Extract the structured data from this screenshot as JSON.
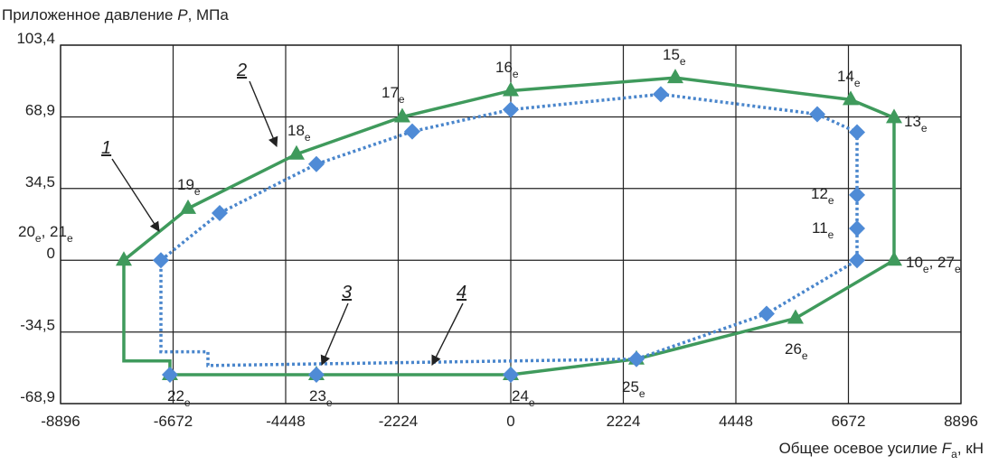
{
  "chart_data": {
    "type": "line",
    "y_label": [
      "Приложенное давление ",
      "P",
      ", МПа"
    ],
    "x_label": [
      "Общее осевое усилие ",
      "F",
      "a",
      ", кН"
    ],
    "xlim": [
      -8896,
      8896
    ],
    "ylim": [
      -68.9,
      103.4
    ],
    "xticks": [
      -8896,
      -6672,
      -4448,
      -2224,
      0,
      2224,
      4448,
      6672,
      8896
    ],
    "yticks": [
      {
        "value": -68.9,
        "label": "-68,9"
      },
      {
        "value": -34.5,
        "label": "-34,5"
      },
      0,
      {
        "value": 34.5,
        "label": "34,5"
      },
      {
        "value": 68.9,
        "label": "68,9"
      },
      {
        "value": 103.4,
        "label": "103,4"
      }
    ],
    "grid": true,
    "series": [
      {
        "color": "#3f9a5c",
        "line": "solid",
        "marker": "triangle",
        "x": [
          -7646,
          -6377,
          -4234,
          -2144,
          0,
          3251,
          6717,
          7574,
          7574,
          5627,
          2483,
          0,
          -3841,
          -6735
        ],
        "values": [
          0,
          24.9,
          51,
          68.9,
          81.5,
          87.7,
          77.2,
          68.5,
          0,
          -27.9,
          -47.5,
          -55,
          -55,
          -55
        ]
      },
      {
        "color": "#3f9a5c",
        "line": "solid",
        "marker": null,
        "x": [
          -6735,
          -6735,
          -7646,
          -7646
        ],
        "values": [
          -55,
          -48.4,
          -48.4,
          0
        ]
      },
      {
        "color": "#4a86cc",
        "line": "dotted",
        "marker": "diamond",
        "x": [
          -6913,
          -5752,
          -3841,
          -1947,
          0,
          2965,
          6056,
          6842,
          6842,
          6842,
          6842,
          5055,
          2483
        ],
        "values": [
          0,
          22.7,
          46.2,
          61.9,
          72.4,
          79.8,
          70.2,
          61.5,
          31.4,
          15.3,
          0,
          -25.7,
          -47.5
        ]
      },
      {
        "color": "#4a86cc",
        "line": "dotted",
        "marker": null,
        "x": [
          2483,
          -5984,
          -5984,
          -6913,
          -6913
        ],
        "values": [
          -47.5,
          -50.6,
          -44,
          -44,
          0
        ]
      },
      {
        "color": "#4a86cc",
        "line": null,
        "marker": "diamond",
        "x": [
          0,
          -3841,
          -6735
        ],
        "values": [
          -55,
          -55,
          -55
        ]
      }
    ],
    "point_labels": [
      [
        "20",
        "e",
        ", 21",
        "e"
      ],
      [
        "19",
        "e"
      ],
      [
        "18",
        "e"
      ],
      [
        "17",
        "e"
      ],
      [
        "16",
        "e"
      ],
      [
        "15",
        "e"
      ],
      [
        "14",
        "e"
      ],
      [
        "13",
        "e"
      ],
      [
        "12",
        "e"
      ],
      [
        "11",
        "e"
      ],
      [
        "10",
        "e",
        ", 27",
        "e"
      ],
      [
        "26",
        "e"
      ],
      [
        "25",
        "e"
      ],
      [
        "24",
        "e"
      ],
      [
        "23",
        "e"
      ],
      [
        "22",
        "e"
      ]
    ],
    "curve_labels": [
      "1",
      "2",
      "3",
      "4"
    ]
  }
}
